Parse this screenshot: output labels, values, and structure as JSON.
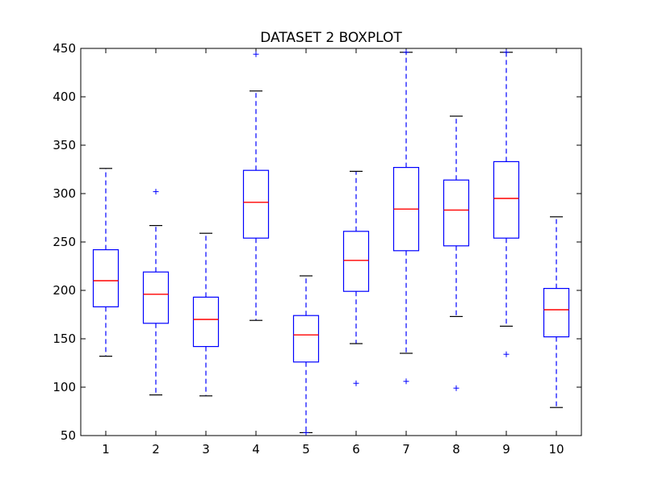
{
  "chart_data": {
    "type": "boxplot",
    "title": "DATASET 2 BOXPLOT",
    "xlabel": "",
    "ylabel": "",
    "ylim": [
      50,
      450
    ],
    "yticks": [
      50,
      100,
      150,
      200,
      250,
      300,
      350,
      400,
      450
    ],
    "categories": [
      "1",
      "2",
      "3",
      "4",
      "5",
      "6",
      "7",
      "8",
      "9",
      "10"
    ],
    "boxes": [
      {
        "category": "1",
        "whisker_low": 132,
        "q1": 183,
        "median": 210,
        "q3": 242,
        "whisker_high": 326,
        "outliers": []
      },
      {
        "category": "2",
        "whisker_low": 92,
        "q1": 166,
        "median": 196,
        "q3": 219,
        "whisker_high": 267,
        "outliers": [
          302
        ]
      },
      {
        "category": "3",
        "whisker_low": 91,
        "q1": 142,
        "median": 170,
        "q3": 193,
        "whisker_high": 259,
        "outliers": []
      },
      {
        "category": "4",
        "whisker_low": 169,
        "q1": 254,
        "median": 291,
        "q3": 324,
        "whisker_high": 406,
        "outliers": [
          444
        ]
      },
      {
        "category": "5",
        "whisker_low": 53,
        "q1": 126,
        "median": 154,
        "q3": 174,
        "whisker_high": 215,
        "outliers": [
          53
        ]
      },
      {
        "category": "6",
        "whisker_low": 145,
        "q1": 199,
        "median": 231,
        "q3": 261,
        "whisker_high": 323,
        "outliers": [
          104
        ]
      },
      {
        "category": "7",
        "whisker_low": 135,
        "q1": 241,
        "median": 284,
        "q3": 327,
        "whisker_high": 446,
        "outliers": [
          106,
          446
        ]
      },
      {
        "category": "8",
        "whisker_low": 173,
        "q1": 246,
        "median": 283,
        "q3": 314,
        "whisker_high": 380,
        "outliers": [
          99
        ]
      },
      {
        "category": "9",
        "whisker_low": 163,
        "q1": 254,
        "median": 295,
        "q3": 333,
        "whisker_high": 446,
        "outliers": [
          134,
          446
        ]
      },
      {
        "category": "10",
        "whisker_low": 79,
        "q1": 152,
        "median": 180,
        "q3": 202,
        "whisker_high": 276,
        "outliers": []
      }
    ],
    "grid": false,
    "colors": {
      "box": "#0000ff",
      "median": "#ff0000",
      "whisker": "#0000ff",
      "cap": "#000000",
      "outlier": "#0000ff",
      "axes": "#000000"
    }
  }
}
